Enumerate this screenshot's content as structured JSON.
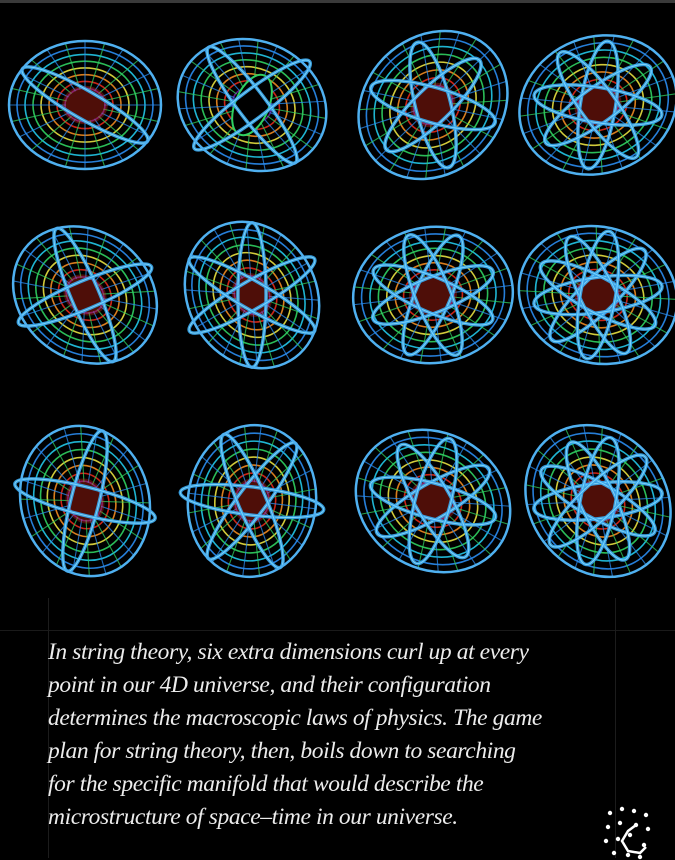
{
  "image": {
    "subject": "calabi-yau-manifold-grid",
    "grid": {
      "rows": 3,
      "columns": 4
    },
    "palette": [
      "#2a8cf0",
      "#22c8e8",
      "#30d060",
      "#e8e040",
      "#f08a20",
      "#e02818",
      "#6a1a9a"
    ]
  },
  "caption": {
    "lines": [
      "In string theory, six extra dimensions curl up at every",
      "point in our 4D universe, and their configuration",
      "determines the macroscopic laws of physics. The game",
      "plan for string theory, then, boils down to searching",
      "for the specific manifold that would describe the",
      "microstructure of space–time in our universe."
    ]
  },
  "logo": {
    "icon": "molecule-dots-icon",
    "color": "#ffffff"
  }
}
